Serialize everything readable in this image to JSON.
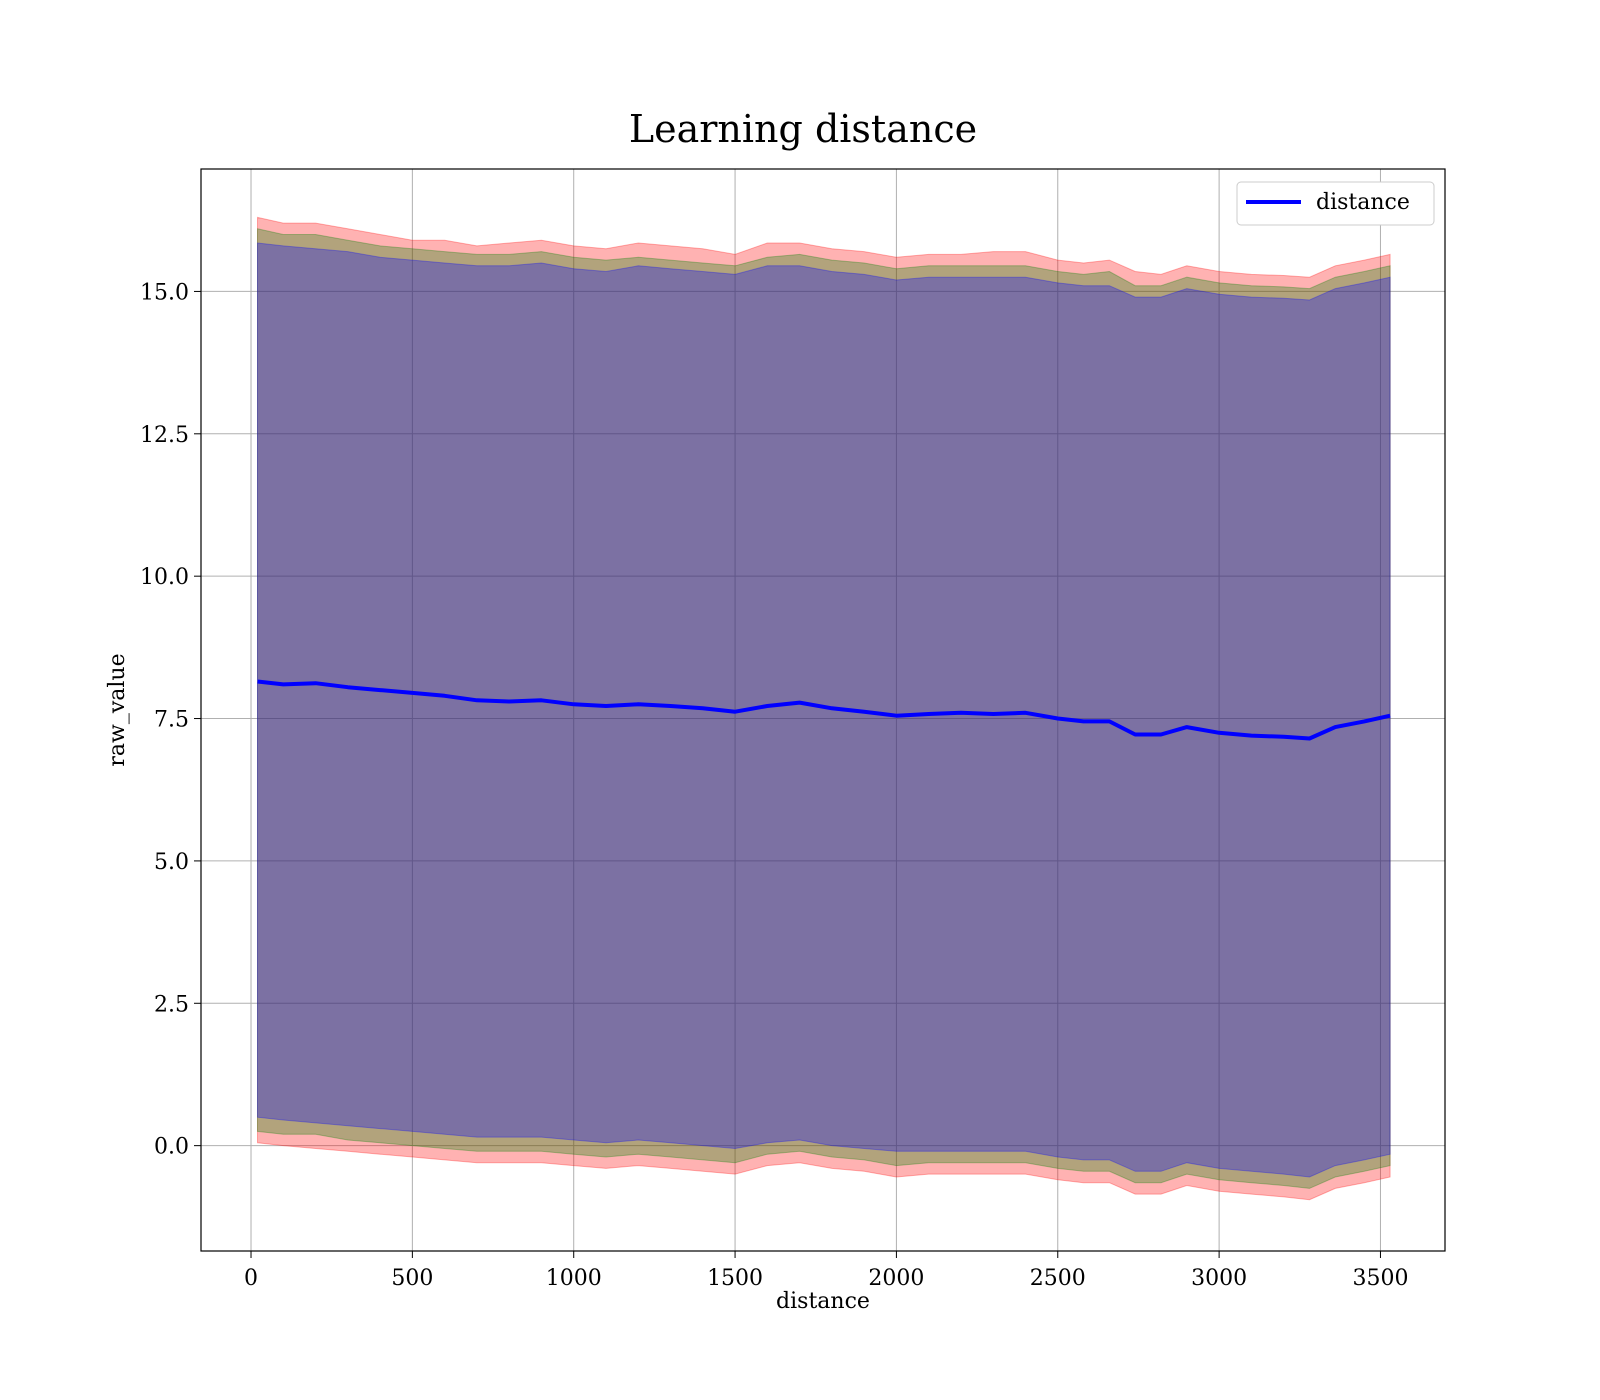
{
  "chart_data": {
    "type": "area",
    "title": "Learning distance",
    "xlabel": "distance",
    "ylabel": "raw_value",
    "xlim": [
      -155,
      3700
    ],
    "ylim": [
      -1.85,
      17.15
    ],
    "xticks": [
      0,
      500,
      1000,
      1500,
      2000,
      2500,
      3000,
      3500
    ],
    "xtick_labels": [
      "0",
      "500",
      "1000",
      "1500",
      "2000",
      "2500",
      "3000",
      "3500"
    ],
    "yticks": [
      0.0,
      2.5,
      5.0,
      7.5,
      10.0,
      12.5,
      15.0
    ],
    "ytick_labels": [
      "0.0",
      "2.5",
      "5.0",
      "7.5",
      "10.0",
      "12.5",
      "15.0"
    ],
    "grid": true,
    "legend": {
      "position": "top-right",
      "entries": [
        {
          "label": "distance",
          "color": "#0000ff"
        }
      ]
    },
    "x": [
      20,
      100,
      200,
      300,
      400,
      500,
      600,
      700,
      800,
      900,
      1000,
      1100,
      1200,
      1300,
      1400,
      1500,
      1600,
      1700,
      1800,
      1900,
      2000,
      2100,
      2200,
      2300,
      2400,
      2500,
      2580,
      2660,
      2740,
      2820,
      2900,
      3000,
      3100,
      3200,
      3280,
      3360,
      3450,
      3530
    ],
    "series": [
      {
        "name": "distance",
        "color": "#0000ff",
        "values": [
          8.15,
          8.1,
          8.12,
          8.05,
          8.0,
          7.95,
          7.9,
          7.82,
          7.8,
          7.82,
          7.75,
          7.72,
          7.75,
          7.72,
          7.68,
          7.62,
          7.72,
          7.78,
          7.68,
          7.62,
          7.55,
          7.58,
          7.6,
          7.58,
          7.6,
          7.5,
          7.45,
          7.45,
          7.22,
          7.22,
          7.35,
          7.25,
          7.2,
          7.18,
          7.15,
          7.35,
          7.45,
          7.55
        ]
      }
    ],
    "bands": [
      {
        "fill": "#ff0000",
        "opacity": 0.3,
        "upper": [
          16.3,
          16.2,
          16.2,
          16.1,
          16.0,
          15.9,
          15.9,
          15.8,
          15.85,
          15.9,
          15.8,
          15.75,
          15.85,
          15.8,
          15.75,
          15.65,
          15.85,
          15.85,
          15.75,
          15.7,
          15.6,
          15.65,
          15.65,
          15.7,
          15.7,
          15.55,
          15.5,
          15.55,
          15.35,
          15.3,
          15.45,
          15.35,
          15.3,
          15.28,
          15.25,
          15.45,
          15.55,
          15.65
        ],
        "lower": [
          0.05,
          0.0,
          -0.05,
          -0.1,
          -0.15,
          -0.2,
          -0.25,
          -0.3,
          -0.3,
          -0.3,
          -0.35,
          -0.4,
          -0.35,
          -0.4,
          -0.45,
          -0.5,
          -0.35,
          -0.3,
          -0.4,
          -0.45,
          -0.55,
          -0.5,
          -0.5,
          -0.5,
          -0.5,
          -0.6,
          -0.65,
          -0.65,
          -0.85,
          -0.85,
          -0.7,
          -0.8,
          -0.85,
          -0.9,
          -0.95,
          -0.75,
          -0.65,
          -0.55
        ]
      },
      {
        "fill": "#008000",
        "opacity": 0.3,
        "upper": [
          16.1,
          16.0,
          16.0,
          15.9,
          15.8,
          15.75,
          15.7,
          15.65,
          15.65,
          15.7,
          15.6,
          15.55,
          15.6,
          15.55,
          15.5,
          15.45,
          15.6,
          15.65,
          15.55,
          15.5,
          15.4,
          15.45,
          15.45,
          15.45,
          15.45,
          15.35,
          15.3,
          15.35,
          15.1,
          15.1,
          15.25,
          15.15,
          15.1,
          15.08,
          15.05,
          15.25,
          15.35,
          15.45
        ],
        "lower": [
          0.25,
          0.2,
          0.2,
          0.1,
          0.05,
          0.0,
          -0.05,
          -0.1,
          -0.1,
          -0.1,
          -0.15,
          -0.2,
          -0.15,
          -0.2,
          -0.25,
          -0.3,
          -0.15,
          -0.1,
          -0.2,
          -0.25,
          -0.35,
          -0.3,
          -0.3,
          -0.3,
          -0.3,
          -0.4,
          -0.45,
          -0.45,
          -0.65,
          -0.65,
          -0.5,
          -0.6,
          -0.65,
          -0.7,
          -0.75,
          -0.55,
          -0.45,
          -0.35
        ]
      },
      {
        "fill": "#0000ff",
        "opacity": 0.3,
        "upper": [
          15.85,
          15.8,
          15.75,
          15.7,
          15.6,
          15.55,
          15.5,
          15.45,
          15.45,
          15.5,
          15.4,
          15.35,
          15.45,
          15.4,
          15.35,
          15.3,
          15.45,
          15.45,
          15.35,
          15.3,
          15.2,
          15.25,
          15.25,
          15.25,
          15.25,
          15.15,
          15.1,
          15.1,
          14.9,
          14.9,
          15.05,
          14.95,
          14.9,
          14.88,
          14.85,
          15.05,
          15.15,
          15.25
        ],
        "lower": [
          0.5,
          0.45,
          0.4,
          0.35,
          0.3,
          0.25,
          0.2,
          0.15,
          0.15,
          0.15,
          0.1,
          0.05,
          0.1,
          0.05,
          0.0,
          -0.05,
          0.05,
          0.1,
          0.0,
          -0.05,
          -0.1,
          -0.1,
          -0.1,
          -0.1,
          -0.1,
          -0.2,
          -0.25,
          -0.25,
          -0.45,
          -0.45,
          -0.3,
          -0.4,
          -0.45,
          -0.5,
          -0.55,
          -0.35,
          -0.25,
          -0.15
        ]
      }
    ]
  }
}
